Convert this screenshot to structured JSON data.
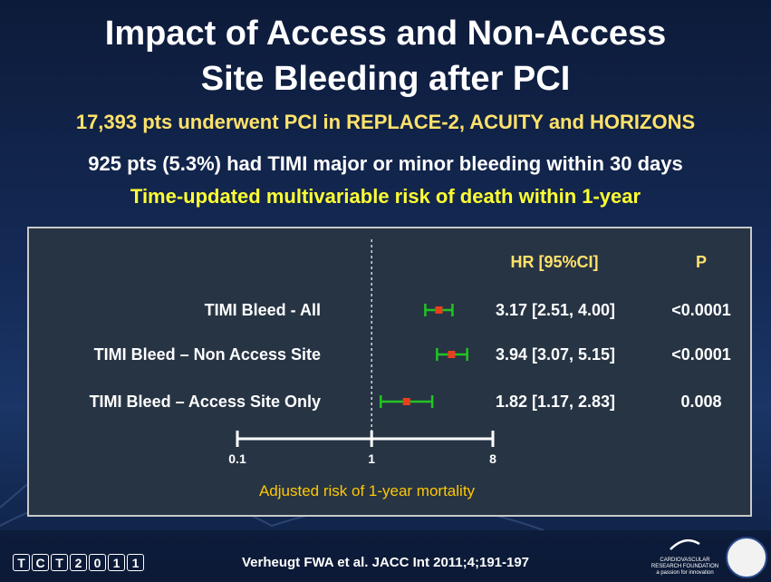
{
  "title_line1": "Impact of Access and Non-Access",
  "title_line2": "Site Bleeding after PCI",
  "subtitle1": "17,393 pts underwent PCI in REPLACE-2, ACUITY and HORIZONS",
  "subtitle2": "925 pts (5.3%) had TIMI major or minor bleeding within 30 days",
  "subtitle3": "Time-updated multivariable risk of death within 1-year",
  "footer_citation": "Verheugt FWA et al. JACC Int 2011;4;191-197",
  "tct_logo": [
    "T",
    "C",
    "T",
    "2",
    "0",
    "1",
    "1"
  ],
  "crf_logo": "CARDIOVASCULAR RESEARCH FOUNDATION",
  "crf_tagline": "a passion for innovation",
  "colors": {
    "marker": "#e8401c",
    "ci": "#22c422",
    "hr_header": "#ffe26b",
    "xlabel": "#ffc800"
  },
  "chart_data": {
    "type": "forest",
    "x_scale": "log",
    "xlim": [
      0.1,
      8
    ],
    "xticks": [
      "0.1",
      "1",
      "8"
    ],
    "reference_line": 1,
    "xlabel": "Adjusted risk of 1-year mortality",
    "col_hr_header": "HR [95%CI]",
    "col_p_header": "P",
    "rows": [
      {
        "label": "TIMI Bleed - All",
        "hr": 3.17,
        "lo": 2.51,
        "hi": 4.0,
        "hr_text": "3.17 [2.51, 4.00]",
        "p": "<0.0001"
      },
      {
        "label": "TIMI Bleed – Non Access Site",
        "hr": 3.94,
        "lo": 3.07,
        "hi": 5.15,
        "hr_text": "3.94 [3.07, 5.15]",
        "p": "<0.0001"
      },
      {
        "label": "TIMI Bleed – Access Site Only",
        "hr": 1.82,
        "lo": 1.17,
        "hi": 2.83,
        "hr_text": "1.82 [1.17, 2.83]",
        "p": "0.008"
      }
    ]
  }
}
